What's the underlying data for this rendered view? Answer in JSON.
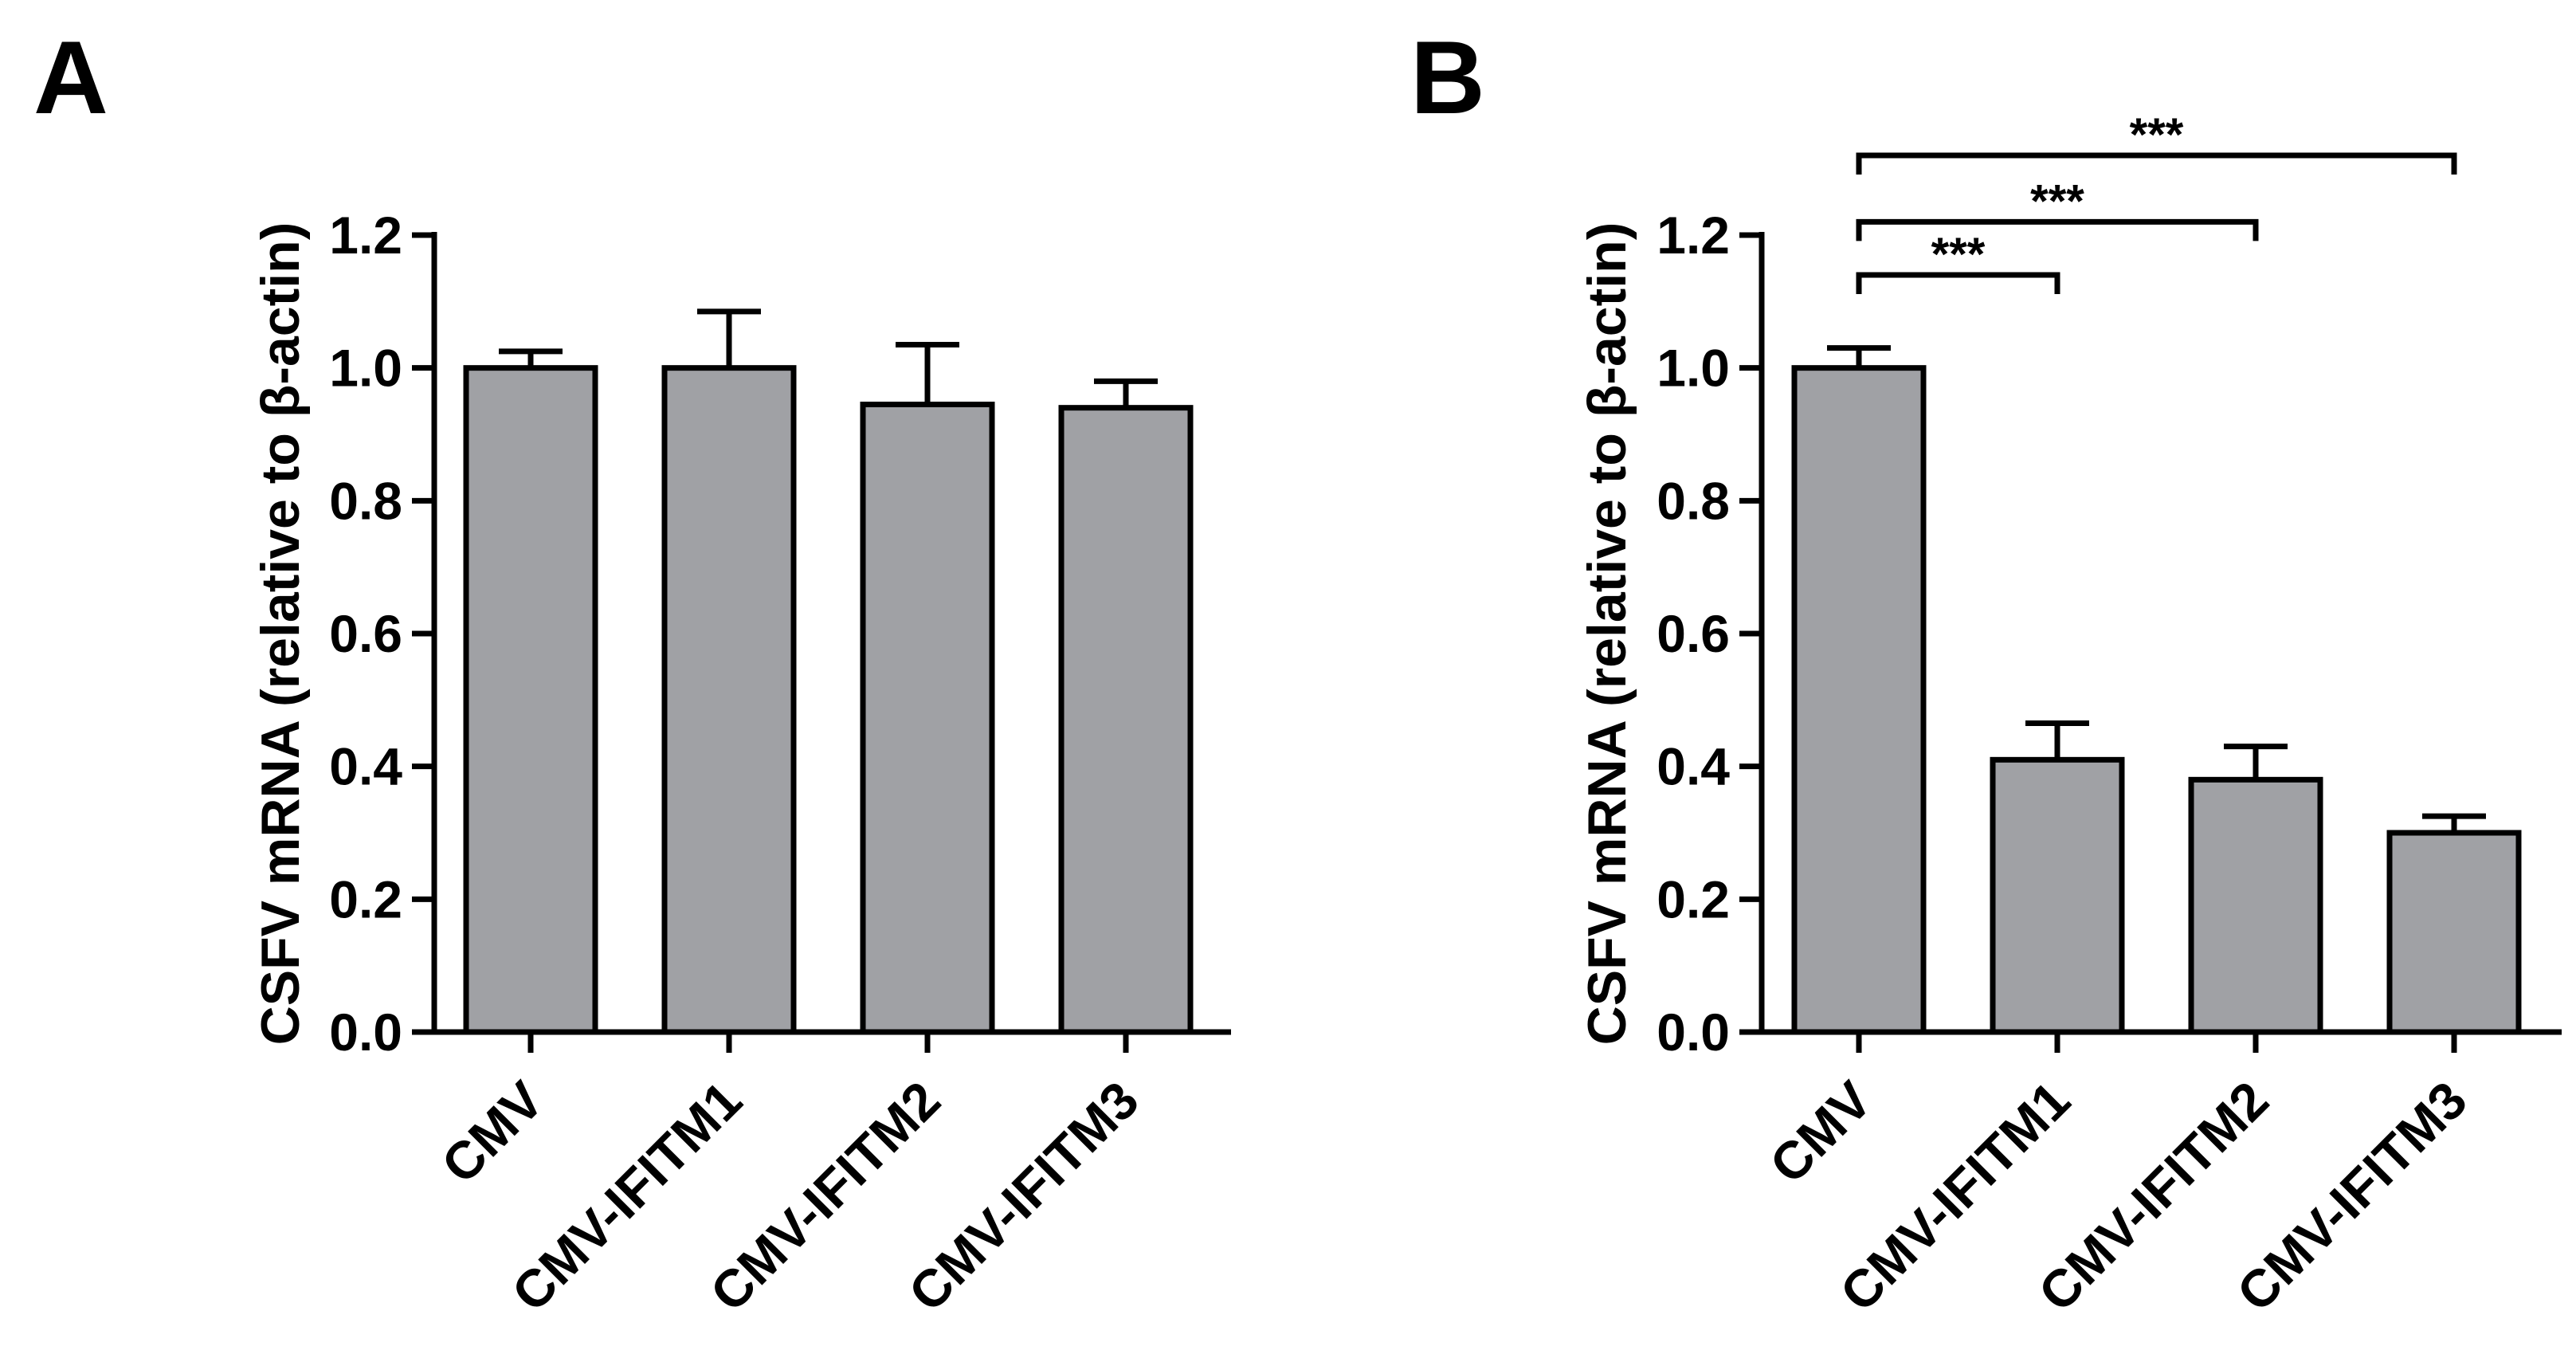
{
  "figure": {
    "panel_a_letter": "A",
    "panel_b_letter": "B"
  },
  "chart_data": [
    {
      "panel": "A",
      "type": "bar",
      "title": "",
      "xlabel": "",
      "ylabel": "CSFV mRNA (relative to β-actin)",
      "categories": [
        "CMV",
        "CMV-IFITM1",
        "CMV-IFITM2",
        "CMV-IFITM3"
      ],
      "values": [
        1.0,
        1.0,
        0.945,
        0.94
      ],
      "errors": [
        0.025,
        0.085,
        0.09,
        0.04
      ],
      "ylim": [
        0,
        1.2
      ],
      "yticks": [
        "0.0",
        "0.2",
        "0.4",
        "0.6",
        "0.8",
        "1.0",
        "1.2"
      ],
      "bar_color": "#a0a1a5",
      "significance": []
    },
    {
      "panel": "B",
      "type": "bar",
      "title": "",
      "xlabel": "",
      "ylabel": "CSFV mRNA (relative to β-actin)",
      "categories": [
        "CMV",
        "CMV-IFITM1",
        "CMV-IFITM2",
        "CMV-IFITM3"
      ],
      "values": [
        1.0,
        0.41,
        0.38,
        0.3
      ],
      "errors": [
        0.03,
        0.055,
        0.05,
        0.025
      ],
      "ylim": [
        0,
        1.2
      ],
      "yticks": [
        "0.0",
        "0.2",
        "0.4",
        "0.6",
        "0.8",
        "1.0",
        "1.2"
      ],
      "bar_color": "#a0a1a5",
      "significance": [
        {
          "from": "CMV",
          "to": "CMV-IFITM1",
          "label": "***",
          "level": 1.14
        },
        {
          "from": "CMV",
          "to": "CMV-IFITM2",
          "label": "***",
          "level": 1.22
        },
        {
          "from": "CMV",
          "to": "CMV-IFITM3",
          "label": "***",
          "level": 1.32
        }
      ]
    }
  ]
}
